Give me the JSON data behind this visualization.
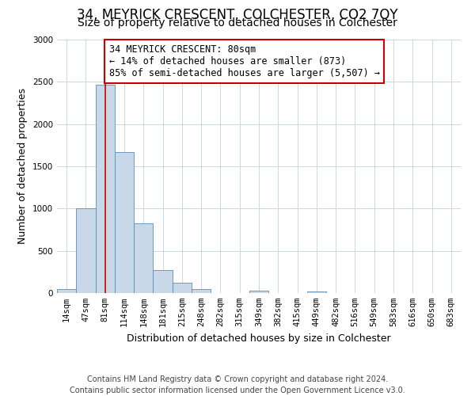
{
  "title": "34, MEYRICK CRESCENT, COLCHESTER, CO2 7QY",
  "subtitle": "Size of property relative to detached houses in Colchester",
  "xlabel": "Distribution of detached houses by size in Colchester",
  "ylabel": "Number of detached properties",
  "footer_line1": "Contains HM Land Registry data © Crown copyright and database right 2024.",
  "footer_line2": "Contains public sector information licensed under the Open Government Licence v3.0.",
  "bins": [
    "14sqm",
    "47sqm",
    "81sqm",
    "114sqm",
    "148sqm",
    "181sqm",
    "215sqm",
    "248sqm",
    "282sqm",
    "315sqm",
    "349sqm",
    "382sqm",
    "415sqm",
    "449sqm",
    "482sqm",
    "516sqm",
    "549sqm",
    "583sqm",
    "616sqm",
    "650sqm",
    "683sqm"
  ],
  "values": [
    50,
    1000,
    2470,
    1670,
    825,
    270,
    120,
    50,
    0,
    0,
    30,
    0,
    0,
    20,
    0,
    0,
    0,
    0,
    0,
    0,
    0
  ],
  "bar_color": "#c8d8e8",
  "bar_edge_color": "#5b8db8",
  "property_line_x": 2.0,
  "property_line_color": "#cc0000",
  "annotation_line1": "34 MEYRICK CRESCENT: 80sqm",
  "annotation_line2": "← 14% of detached houses are smaller (873)",
  "annotation_line3": "85% of semi-detached houses are larger (5,507) →",
  "annotation_box_color": "#ffffff",
  "annotation_border_color": "#cc0000",
  "ylim": [
    0,
    3000
  ],
  "yticks": [
    0,
    500,
    1000,
    1500,
    2000,
    2500,
    3000
  ],
  "background_color": "#ffffff",
  "grid_color": "#c8d8e8",
  "title_fontsize": 12,
  "subtitle_fontsize": 10,
  "axis_label_fontsize": 9,
  "tick_fontsize": 7.5,
  "annotation_fontsize": 8.5,
  "footer_fontsize": 7
}
